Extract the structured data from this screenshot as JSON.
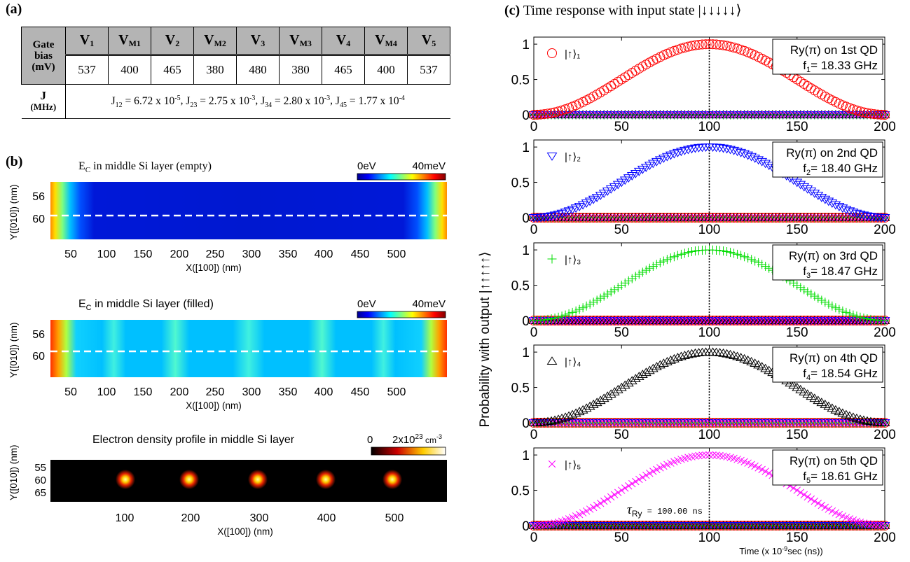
{
  "panel_a": {
    "label": "(a)",
    "row1_header": [
      "Gate",
      "bias",
      "(mV)"
    ],
    "columns": [
      {
        "name": "V",
        "sub": "1",
        "value": "537"
      },
      {
        "name": "V",
        "sub": "M1",
        "value": "400"
      },
      {
        "name": "V",
        "sub": "2",
        "value": "465"
      },
      {
        "name": "V",
        "sub": "M2",
        "value": "380"
      },
      {
        "name": "V",
        "sub": "3",
        "value": "480"
      },
      {
        "name": "V",
        "sub": "M3",
        "value": "380"
      },
      {
        "name": "V",
        "sub": "4",
        "value": "465"
      },
      {
        "name": "V",
        "sub": "M4",
        "value": "400"
      },
      {
        "name": "V",
        "sub": "5",
        "value": "537"
      }
    ],
    "row2_header": [
      "J",
      "(MHz)"
    ],
    "couplings": [
      {
        "name": "J",
        "sub": "12",
        "mant": "6.72 x 10",
        "exp": "-5"
      },
      {
        "name": "J",
        "sub": "23",
        "mant": "2.75 x 10",
        "exp": "-3"
      },
      {
        "name": "J",
        "sub": "34",
        "mant": "2.80 x 10",
        "exp": "-3"
      },
      {
        "name": "J",
        "sub": "45",
        "mant": "1.77 x 10",
        "exp": "-4"
      }
    ]
  },
  "panel_b": {
    "label": "(b)",
    "maps": [
      {
        "title_pre": "E",
        "title_sub": "C",
        "title_post": " in middle Si layer (empty)",
        "cbar_min": "0eV",
        "cbar_max": "40meV",
        "yticks": [
          "56",
          "60"
        ],
        "xticks": [
          "50",
          "100",
          "150",
          "200",
          "250",
          "300",
          "350",
          "400",
          "450",
          "500"
        ],
        "ylabel": "Y([010]) (nm)",
        "xlabel": "X([100]) (nm)"
      },
      {
        "title_pre": "E",
        "title_sub": "C",
        "title_post": " in middle Si layer (filled)",
        "cbar_min": "0eV",
        "cbar_max": "40meV",
        "yticks": [
          "56",
          "60"
        ],
        "xticks": [
          "50",
          "100",
          "150",
          "200",
          "250",
          "300",
          "350",
          "400",
          "450",
          "500"
        ],
        "ylabel": "Y([010]) (nm)",
        "xlabel": "X([100]) (nm)"
      },
      {
        "title": "Electron density profile in middle Si layer",
        "cbar_min": "0",
        "cbar_max_pre": "2x10",
        "cbar_max_exp": "23",
        "cbar_max_unit": " cm",
        "cbar_max_unit_exp": "-3",
        "yticks": [
          "55",
          "60",
          "65"
        ],
        "xticks": [
          "100",
          "200",
          "300",
          "400",
          "500"
        ],
        "ylabel": "Y([010]) (nm)",
        "xlabel": "X([100]) (nm)"
      }
    ]
  },
  "panel_c": {
    "label": "(c)",
    "title": "Time response with input state |↓↓↓↓↓⟩",
    "ylabel": "Probability with output |↑↑↑↑↑⟩",
    "xlabel": "Time (x 10",
    "xlabel_exp": "-9",
    "xlabel_post": "sec (ns))",
    "tau_label": "τ",
    "tau_sub": "Ry",
    "tau_value": " = 100.00 ns"
  },
  "chart_data": [
    {
      "type": "line",
      "id": "qd1",
      "title": "",
      "xlim": [
        0,
        200
      ],
      "ylim": [
        0,
        1.1
      ],
      "xticks": [
        "0",
        "50",
        "100",
        "150",
        "200"
      ],
      "yticks": [
        "0",
        "0.5",
        "1"
      ],
      "legend": "|↑⟩₁",
      "marker": "circle",
      "color": "#ff0000",
      "box_line1": "Ry(π) on 1st QD",
      "box_f": "f",
      "box_fsub": "1",
      "box_val": "= 18.33 GHz",
      "x_series": "0..200 step 2",
      "y_function": "sin^2(pi*t/200)",
      "peak_x": 100,
      "peak_y": 1.0
    },
    {
      "type": "line",
      "id": "qd2",
      "title": "",
      "xlim": [
        0,
        200
      ],
      "ylim": [
        0,
        1.1
      ],
      "xticks": [
        "0",
        "50",
        "100",
        "150",
        "200"
      ],
      "yticks": [
        "0",
        "0.5",
        "1"
      ],
      "legend": "|↑⟩₂",
      "marker": "triangle-down",
      "color": "#0000ff",
      "box_line1": "Ry(π) on 2nd QD",
      "box_f": "f",
      "box_fsub": "2",
      "box_val": "= 18.40 GHz",
      "x_series": "0..200 step 2",
      "y_function": "sin^2(pi*t/200)",
      "peak_x": 100,
      "peak_y": 1.0
    },
    {
      "type": "line",
      "id": "qd3",
      "title": "",
      "xlim": [
        0,
        200
      ],
      "ylim": [
        0,
        1.1
      ],
      "xticks": [
        "0",
        "50",
        "100",
        "150",
        "200"
      ],
      "yticks": [
        "0",
        "0.5",
        "1"
      ],
      "legend": "|↑⟩₃",
      "marker": "plus",
      "color": "#00dd00",
      "box_line1": "Ry(π) on 3rd QD",
      "box_f": "f",
      "box_fsub": "3",
      "box_val": "= 18.47 GHz",
      "x_series": "0..200 step 2",
      "y_function": "sin^2(pi*t/200)",
      "peak_x": 100,
      "peak_y": 1.0
    },
    {
      "type": "line",
      "id": "qd4",
      "title": "",
      "xlim": [
        0,
        200
      ],
      "ylim": [
        0,
        1.1
      ],
      "xticks": [
        "0",
        "50",
        "100",
        "150",
        "200"
      ],
      "yticks": [
        "0",
        "0.5",
        "1"
      ],
      "legend": "|↑⟩₄",
      "marker": "triangle-up",
      "color": "#000000",
      "box_line1": "Ry(π) on 4th QD",
      "box_f": "f",
      "box_fsub": "4",
      "box_val": "= 18.54 GHz",
      "x_series": "0..200 step 2",
      "y_function": "sin^2(pi*t/200)",
      "peak_x": 100,
      "peak_y": 1.0
    },
    {
      "type": "line",
      "id": "qd5",
      "title": "",
      "xlim": [
        0,
        200
      ],
      "ylim": [
        0,
        1.1
      ],
      "xticks": [
        "0",
        "50",
        "100",
        "150",
        "200"
      ],
      "yticks": [
        "0",
        "0.5",
        "1"
      ],
      "legend": "|↑⟩₅",
      "marker": "x",
      "color": "#ff00ff",
      "box_line1": "Ry(π) on 5th QD",
      "box_f": "f",
      "box_fsub": "5",
      "box_val": "= 18.61 GHz",
      "x_series": "0..200 step 2",
      "y_function": "sin^2(pi*t/200)",
      "peak_x": 100,
      "peak_y": 1.0
    }
  ]
}
